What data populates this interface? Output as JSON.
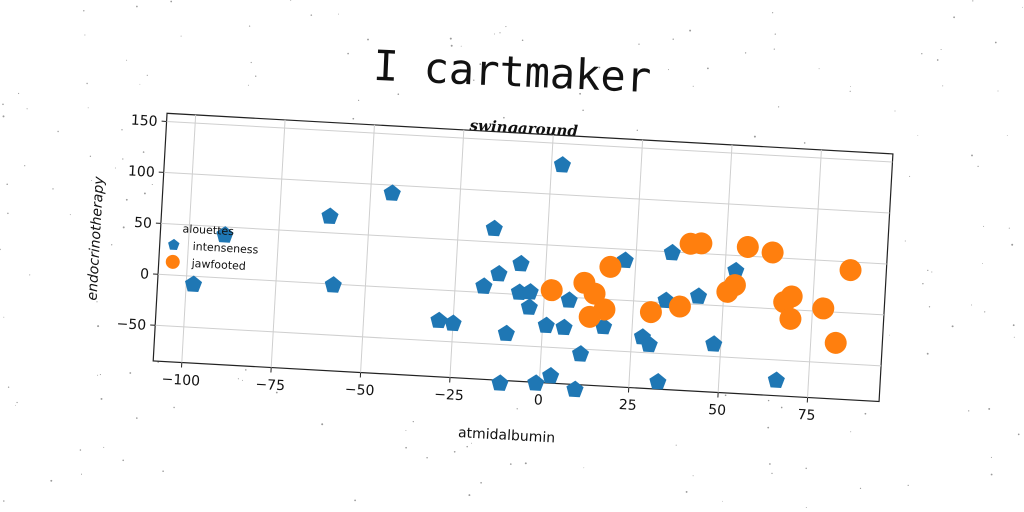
{
  "title": "I cartmaker",
  "chart_data": {
    "type": "scatter",
    "title": "swingaround",
    "xlabel": "atmidalbumin",
    "ylabel": "endocrinotherapy",
    "xlim": [
      -108,
      95
    ],
    "ylim": [
      -85,
      158
    ],
    "x_ticks": [
      -100,
      -75,
      -50,
      -25,
      0,
      25,
      50,
      75
    ],
    "y_ticks": [
      -50,
      0,
      50,
      100,
      150
    ],
    "grid": true,
    "legend": {
      "title": "alouettes",
      "placement": "center-left"
    },
    "series": [
      {
        "name": "intenseness",
        "marker": "pentagon",
        "color": "#1f77b4",
        "points": [
          [
            3,
            129
          ],
          [
            -44,
            92
          ],
          [
            -61,
            66
          ],
          [
            -15,
            63
          ],
          [
            -90,
            42
          ],
          [
            -98,
            -8
          ],
          [
            -59,
            -1
          ],
          [
            35,
            49
          ],
          [
            -7,
            30
          ],
          [
            22,
            39
          ],
          [
            53,
            35
          ],
          [
            63,
            55
          ],
          [
            -13,
            19
          ],
          [
            -17,
            6
          ],
          [
            -7,
            2
          ],
          [
            -4,
            3
          ],
          [
            -4,
            -12
          ],
          [
            7,
            -3
          ],
          [
            34,
            2
          ],
          [
            43,
            8
          ],
          [
            -29,
            -30
          ],
          [
            -25,
            -32
          ],
          [
            -10,
            -39
          ],
          [
            1,
            -29
          ],
          [
            6,
            -30
          ],
          [
            17,
            -27
          ],
          [
            28,
            -35
          ],
          [
            30,
            -42
          ],
          [
            48,
            -38
          ],
          [
            11,
            -55
          ],
          [
            66,
            -70
          ],
          [
            33,
            -78
          ],
          [
            3,
            -78
          ],
          [
            -1,
            -86
          ],
          [
            -11,
            -88
          ],
          [
            10,
            -90
          ]
        ]
      },
      {
        "name": "jawfooted",
        "marker": "circle",
        "color": "#ff7f0e",
        "points": [
          [
            18,
            32
          ],
          [
            40,
            59
          ],
          [
            43,
            60
          ],
          [
            56,
            59
          ],
          [
            63,
            55
          ],
          [
            85,
            42
          ],
          [
            53,
            21
          ],
          [
            51,
            14
          ],
          [
            11,
            15
          ],
          [
            14,
            5
          ],
          [
            2,
            6
          ],
          [
            69,
            13
          ],
          [
            67,
            7
          ],
          [
            78,
            3
          ],
          [
            69,
            -9
          ],
          [
            38,
            -3
          ],
          [
            30,
            -10
          ],
          [
            17,
            -10
          ],
          [
            13,
            -18
          ],
          [
            82,
            -30
          ]
        ]
      }
    ]
  }
}
